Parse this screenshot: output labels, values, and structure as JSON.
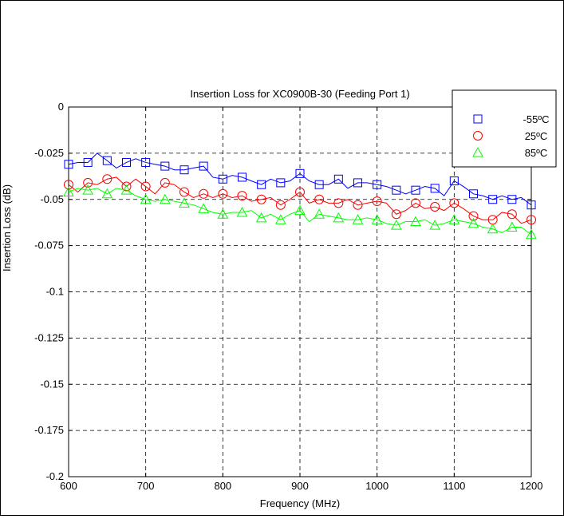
{
  "chart_data": {
    "type": "line",
    "title": "Insertion Loss for XC0900B-30 (Feeding Port 1)",
    "xlabel": "Frequency (MHz)",
    "ylabel": "Insertion Loss (dB)",
    "xlim": [
      600,
      1200
    ],
    "ylim": [
      -0.2,
      0
    ],
    "x_ticks": [
      "600",
      "700",
      "800",
      "900",
      "1000",
      "1100",
      "1200"
    ],
    "y_ticks": [
      "0",
      "-0.025",
      "-0.05",
      "-0.075",
      "-0.1",
      "-0.125",
      "-0.15",
      "-0.175",
      "-0.2"
    ],
    "grid": true,
    "legend_position": "top-right",
    "x": [
      600,
      612,
      625,
      637,
      650,
      662,
      675,
      687,
      700,
      712,
      725,
      737,
      750,
      762,
      775,
      787,
      800,
      812,
      825,
      837,
      850,
      862,
      875,
      887,
      900,
      912,
      925,
      937,
      950,
      962,
      975,
      987,
      1000,
      1012,
      1025,
      1037,
      1050,
      1062,
      1075,
      1087,
      1100,
      1112,
      1125,
      1137,
      1150,
      1162,
      1175,
      1187,
      1200
    ],
    "series": [
      {
        "name": "-55ºC",
        "color": "#0000ff",
        "marker": "square",
        "values": [
          -0.031,
          -0.03,
          -0.03,
          -0.025,
          -0.029,
          -0.033,
          -0.03,
          -0.028,
          -0.03,
          -0.031,
          -0.032,
          -0.034,
          -0.034,
          -0.033,
          -0.032,
          -0.038,
          -0.039,
          -0.037,
          -0.038,
          -0.04,
          -0.042,
          -0.039,
          -0.041,
          -0.04,
          -0.036,
          -0.04,
          -0.042,
          -0.042,
          -0.039,
          -0.044,
          -0.041,
          -0.041,
          -0.042,
          -0.043,
          -0.045,
          -0.047,
          -0.045,
          -0.043,
          -0.044,
          -0.048,
          -0.04,
          -0.043,
          -0.047,
          -0.048,
          -0.05,
          -0.048,
          -0.05,
          -0.049,
          -0.053
        ]
      },
      {
        "name": "25ºC",
        "color": "#ff0000",
        "marker": "circle",
        "values": [
          -0.042,
          -0.046,
          -0.041,
          -0.042,
          -0.039,
          -0.038,
          -0.043,
          -0.039,
          -0.043,
          -0.047,
          -0.041,
          -0.042,
          -0.046,
          -0.049,
          -0.047,
          -0.049,
          -0.047,
          -0.049,
          -0.048,
          -0.051,
          -0.05,
          -0.049,
          -0.053,
          -0.05,
          -0.046,
          -0.052,
          -0.05,
          -0.052,
          -0.052,
          -0.05,
          -0.053,
          -0.052,
          -0.051,
          -0.052,
          -0.058,
          -0.056,
          -0.052,
          -0.055,
          -0.054,
          -0.056,
          -0.052,
          -0.055,
          -0.059,
          -0.061,
          -0.061,
          -0.057,
          -0.058,
          -0.063,
          -0.061
        ]
      },
      {
        "name": "85ºC",
        "color": "#00ff00",
        "marker": "triangle",
        "values": [
          -0.046,
          -0.044,
          -0.045,
          -0.044,
          -0.047,
          -0.044,
          -0.045,
          -0.048,
          -0.05,
          -0.051,
          -0.05,
          -0.051,
          -0.052,
          -0.053,
          -0.055,
          -0.057,
          -0.058,
          -0.057,
          -0.057,
          -0.056,
          -0.06,
          -0.058,
          -0.061,
          -0.058,
          -0.056,
          -0.062,
          -0.058,
          -0.059,
          -0.06,
          -0.061,
          -0.061,
          -0.06,
          -0.061,
          -0.063,
          -0.064,
          -0.062,
          -0.062,
          -0.061,
          -0.064,
          -0.063,
          -0.061,
          -0.062,
          -0.063,
          -0.065,
          -0.066,
          -0.068,
          -0.065,
          -0.065,
          -0.069
        ]
      }
    ]
  }
}
